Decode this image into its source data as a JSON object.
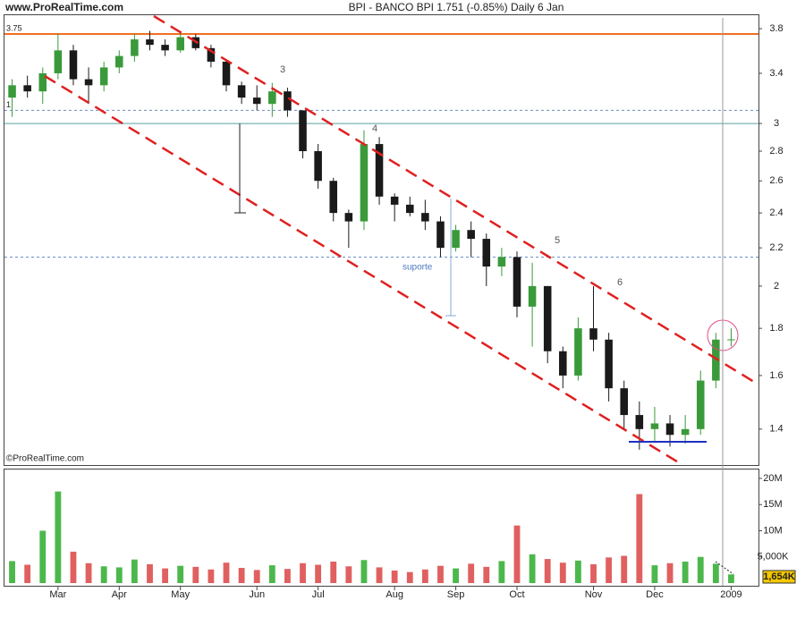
{
  "header": {
    "site": "www.ProRealTime.com",
    "title": "BPI - BANCO BPI   1.751 (-0.85%)   Daily  6 Jan"
  },
  "chart_data": {
    "type": "candlestick",
    "copyright": "©ProRealTime.com",
    "categories": [
      null,
      null,
      null,
      "Mar",
      null,
      null,
      null,
      "Apr",
      null,
      null,
      null,
      "May",
      null,
      null,
      null,
      null,
      "Jun",
      null,
      null,
      null,
      "Jul",
      null,
      null,
      null,
      null,
      "Aug",
      null,
      null,
      null,
      "Sep",
      null,
      null,
      null,
      "Oct",
      null,
      null,
      null,
      null,
      "Nov",
      null,
      null,
      null,
      "Dec",
      null,
      null,
      null,
      null,
      "2009"
    ],
    "open": [
      3.2,
      3.3,
      3.25,
      3.4,
      3.6,
      3.35,
      3.3,
      3.45,
      3.55,
      3.7,
      3.65,
      3.6,
      3.72,
      3.62,
      3.5,
      3.3,
      3.2,
      3.15,
      3.25,
      3.1,
      2.8,
      2.6,
      2.4,
      2.35,
      2.85,
      2.5,
      2.45,
      2.4,
      2.35,
      2.2,
      2.3,
      2.25,
      2.1,
      2.15,
      1.9,
      2.0,
      1.7,
      1.6,
      1.8,
      1.75,
      1.55,
      1.45,
      1.4,
      1.42,
      1.38,
      1.4,
      1.58,
      1.75
    ],
    "high": [
      3.35,
      3.38,
      3.45,
      3.75,
      3.65,
      3.45,
      3.5,
      3.6,
      3.75,
      3.78,
      3.7,
      3.78,
      3.75,
      3.65,
      3.52,
      3.33,
      3.3,
      3.32,
      3.28,
      3.1,
      2.85,
      2.62,
      2.42,
      2.95,
      2.9,
      2.52,
      2.5,
      2.48,
      2.38,
      2.33,
      2.35,
      2.28,
      2.2,
      2.18,
      2.12,
      2.0,
      1.72,
      1.85,
      2.0,
      1.78,
      1.58,
      1.5,
      1.48,
      1.45,
      1.45,
      1.62,
      1.78,
      1.8
    ],
    "low": [
      3.05,
      3.2,
      3.15,
      3.35,
      3.3,
      3.15,
      3.25,
      3.4,
      3.5,
      3.6,
      3.55,
      3.58,
      3.6,
      3.45,
      3.25,
      3.15,
      3.1,
      3.05,
      3.05,
      2.75,
      2.55,
      2.35,
      2.2,
      2.3,
      2.45,
      2.35,
      2.38,
      2.3,
      2.15,
      2.18,
      2.15,
      2.0,
      2.05,
      1.85,
      1.72,
      1.65,
      1.55,
      1.58,
      1.7,
      1.5,
      1.4,
      1.33,
      1.36,
      1.34,
      1.35,
      1.38,
      1.55,
      1.72
    ],
    "close": [
      3.3,
      3.25,
      3.4,
      3.6,
      3.35,
      3.3,
      3.45,
      3.55,
      3.7,
      3.65,
      3.6,
      3.72,
      3.62,
      3.5,
      3.3,
      3.2,
      3.15,
      3.25,
      3.1,
      2.8,
      2.6,
      2.4,
      2.35,
      2.85,
      2.5,
      2.45,
      2.4,
      2.35,
      2.2,
      2.3,
      2.25,
      2.1,
      2.15,
      1.9,
      2.0,
      1.7,
      1.6,
      1.8,
      1.75,
      1.55,
      1.45,
      1.4,
      1.42,
      1.38,
      1.4,
      1.58,
      1.75,
      1.751
    ],
    "up_color": "#3a9a3a",
    "down_color": "#1a1a1a",
    "log_scale": true,
    "ylim": [
      1.28,
      3.93
    ],
    "yticks": [
      1.4,
      1.6,
      1.8,
      2,
      2.2,
      2.4,
      2.6,
      2.8,
      3,
      3.4,
      3.8
    ],
    "levels": [
      {
        "value": 3.75,
        "label": "3.75",
        "color": "#f07020"
      },
      {
        "value": 3.1,
        "label": "1",
        "color": "#6a8fc8"
      },
      {
        "value": 3,
        "color": "#5aa0a0"
      },
      {
        "value": 2.15,
        "color": "#6a8fc8"
      }
    ],
    "annotations": [
      "3",
      "4",
      "5",
      "6",
      "suporte"
    ],
    "volume": [
      4200000,
      3500000,
      10000000,
      17500000,
      6000000,
      3800000,
      3200000,
      3000000,
      4500000,
      3600000,
      2800000,
      3300000,
      3100000,
      2600000,
      3900000,
      2900000,
      2500000,
      3400000,
      2700000,
      3800000,
      3500000,
      4100000,
      3200000,
      4400000,
      3000000,
      2400000,
      2100000,
      2600000,
      3300000,
      2800000,
      3700000,
      3100000,
      4200000,
      11000000,
      5500000,
      4600000,
      3900000,
      4300000,
      3600000,
      4900000,
      5200000,
      17000000,
      3400000,
      3800000,
      4100000,
      5000000,
      3700000,
      1654000
    ],
    "volume_up_color": "#4cb84c",
    "volume_down_color": "#e06060",
    "volume_ylim": [
      0,
      21700000
    ],
    "volume_yticks": [
      {
        "value": 5000000,
        "label": "5,000K"
      },
      {
        "value": 10000000,
        "label": "10M"
      },
      {
        "value": 15000000,
        "label": "15M"
      },
      {
        "value": 20000000,
        "label": "20M"
      }
    ],
    "last_volume_label": "1,654K"
  }
}
